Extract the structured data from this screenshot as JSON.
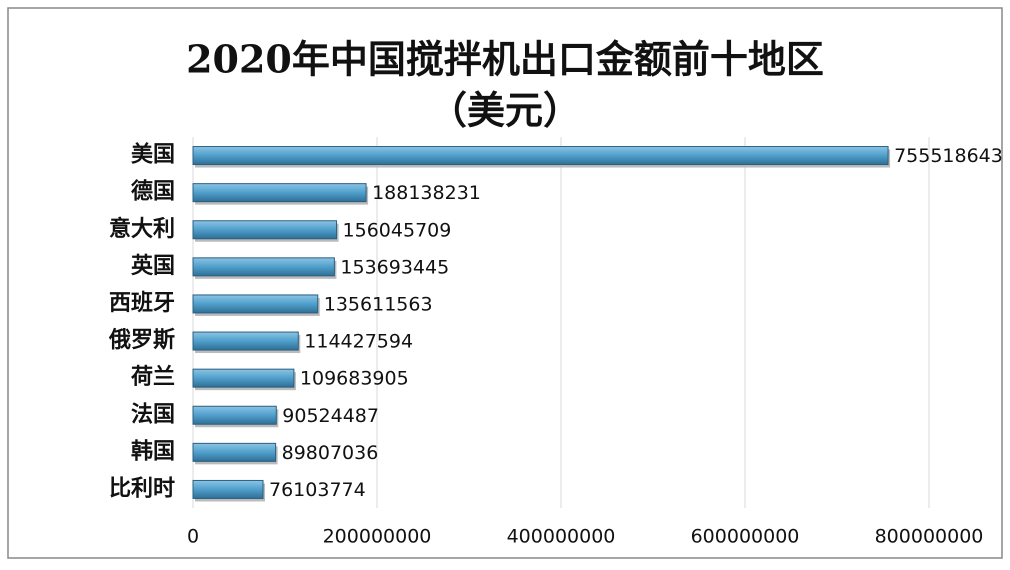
{
  "chart_data": {
    "type": "bar",
    "orientation": "horizontal",
    "title": "2020年中国搅拌机出口金额前十地区",
    "subtitle": "（美元）",
    "categories": [
      "美国",
      "德国",
      "意大利",
      "英国",
      "西班牙",
      "俄罗斯",
      "荷兰",
      "法国",
      "韩国",
      "比利时"
    ],
    "values": [
      755518643,
      188138231,
      156045709,
      153693445,
      135611563,
      114427594,
      109683905,
      90524487,
      89807036,
      76103774
    ],
    "color": "#4f9fcb",
    "xlim": [
      0,
      800000000
    ],
    "xticks": [
      0,
      200000000,
      400000000,
      600000000,
      800000000
    ],
    "grid": true
  }
}
